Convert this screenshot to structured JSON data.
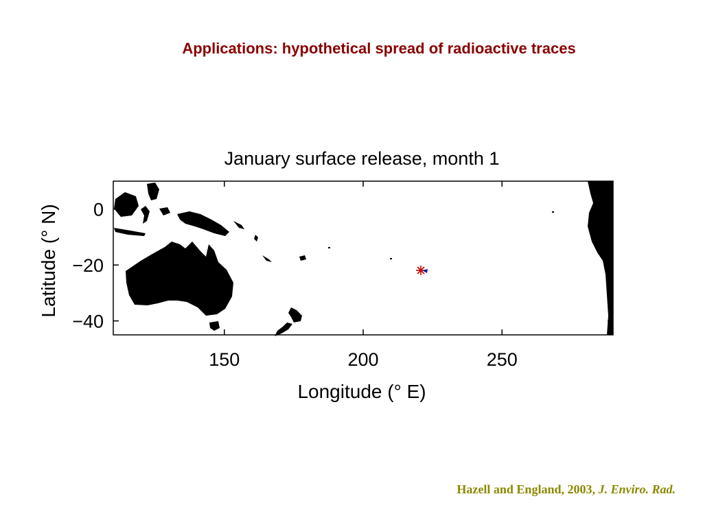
{
  "slide": {
    "title": "Applications: hypothetical spread of radioactive traces",
    "citation_prefix": "Hazell and England, 2003,",
    "citation_journal": "J. Enviro. Rad."
  },
  "figure": {
    "title": "January surface release,  month  1",
    "x_axis_label": "Longitude (° E)",
    "y_axis_label": "Latitude (° N)",
    "land_color": "#000000",
    "release_marker": {
      "symbol": "*",
      "lon": 221,
      "lat": -22,
      "color": "#cc0000",
      "trace_color": "#1a1aa0"
    }
  },
  "chart_data": {
    "type": "scatter",
    "title": "January surface release,  month  1",
    "xlabel": "Longitude (° E)",
    "ylabel": "Latitude (° N)",
    "xlim": [
      110,
      290
    ],
    "ylim": [
      -45,
      10
    ],
    "x_ticks": [
      150,
      200,
      250
    ],
    "y_ticks": [
      0,
      -20,
      -40
    ],
    "x_tick_labels": [
      "150",
      "200",
      "250"
    ],
    "y_tick_labels": [
      "0",
      "−20",
      "−40"
    ],
    "series": [
      {
        "x": [
          221
        ],
        "y": [
          -22
        ]
      }
    ],
    "grid": false
  }
}
